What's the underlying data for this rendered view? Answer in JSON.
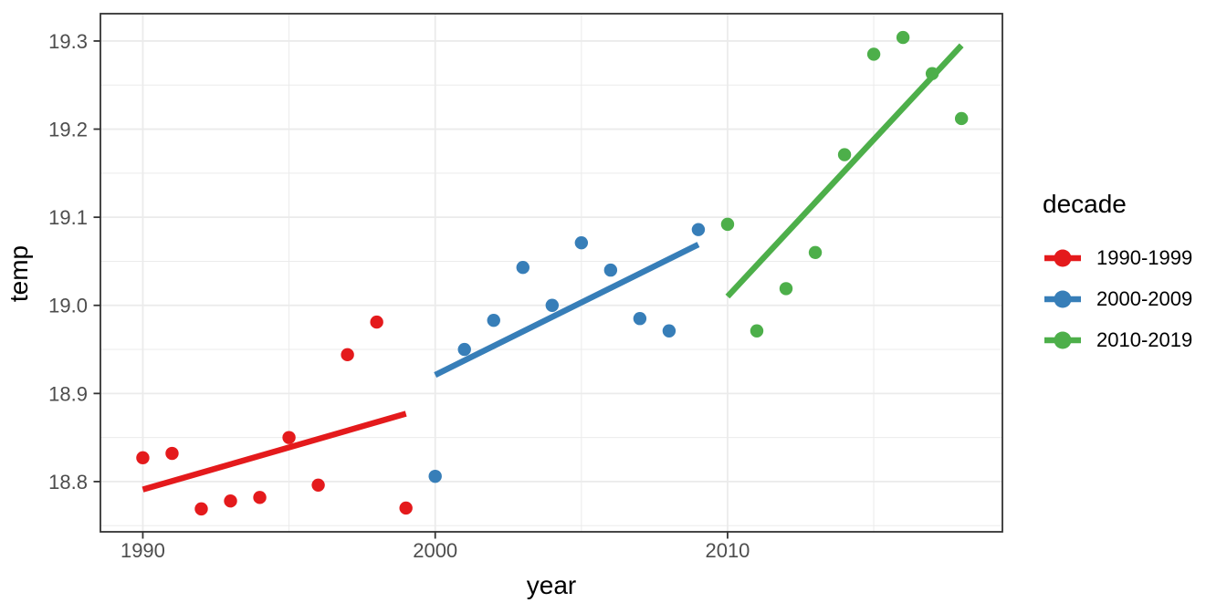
{
  "style": {
    "background": "#FFFFFF",
    "grid_color": "#EBEBEB",
    "panel_border_color": "#333333",
    "tick_color": "#333333",
    "tick_label_color": "#4D4D4D",
    "title_color": "#000000"
  },
  "chart_data": {
    "type": "scatter",
    "title": "",
    "xlabel": "year",
    "ylabel": "temp",
    "grid": true,
    "legend_title": "decade",
    "legend_position": "right",
    "xlim": [
      1988.55,
      2019.4
    ],
    "ylim": [
      18.743,
      19.331
    ],
    "x_major_ticks": [
      1990,
      2000,
      2010
    ],
    "x_tick_labels": [
      "1990",
      "2000",
      "2010"
    ],
    "x_minor_ticks": [
      1995,
      2005,
      2015
    ],
    "y_major_ticks": [
      18.8,
      18.9,
      19.0,
      19.1,
      19.2,
      19.3
    ],
    "y_tick_labels": [
      "18.8",
      "18.9",
      "19.0",
      "19.1",
      "19.2",
      "19.3"
    ],
    "y_minor_ticks": [
      18.75,
      18.85,
      18.95,
      19.05,
      19.15,
      19.25
    ],
    "series": [
      {
        "name": "1990-1999",
        "color": "#E41A1C",
        "x": [
          1990,
          1991,
          1992,
          1993,
          1994,
          1995,
          1996,
          1997,
          1998,
          1999
        ],
        "y": [
          18.827,
          18.832,
          18.769,
          18.778,
          18.782,
          18.85,
          18.796,
          18.944,
          18.981,
          18.77
        ],
        "trend": {
          "x": [
            1990,
            1999
          ],
          "y": [
            18.791,
            18.877
          ]
        }
      },
      {
        "name": "2000-2009",
        "color": "#377EB8",
        "x": [
          2000,
          2001,
          2002,
          2003,
          2004,
          2005,
          2006,
          2007,
          2008,
          2009
        ],
        "y": [
          18.806,
          18.95,
          18.983,
          19.043,
          19.0,
          19.071,
          19.04,
          18.985,
          18.971,
          19.086
        ],
        "trend": {
          "x": [
            2000,
            2009
          ],
          "y": [
            18.921,
            19.069
          ]
        }
      },
      {
        "name": "2010-2019",
        "color": "#4DAF4A",
        "x": [
          2010,
          2011,
          2012,
          2013,
          2014,
          2015,
          2016,
          2017,
          2018
        ],
        "y": [
          19.092,
          18.971,
          19.019,
          19.06,
          19.171,
          19.285,
          19.304,
          19.263,
          19.212
        ],
        "trend": {
          "x": [
            2010,
            2018
          ],
          "y": [
            19.01,
            19.295
          ]
        }
      }
    ]
  }
}
